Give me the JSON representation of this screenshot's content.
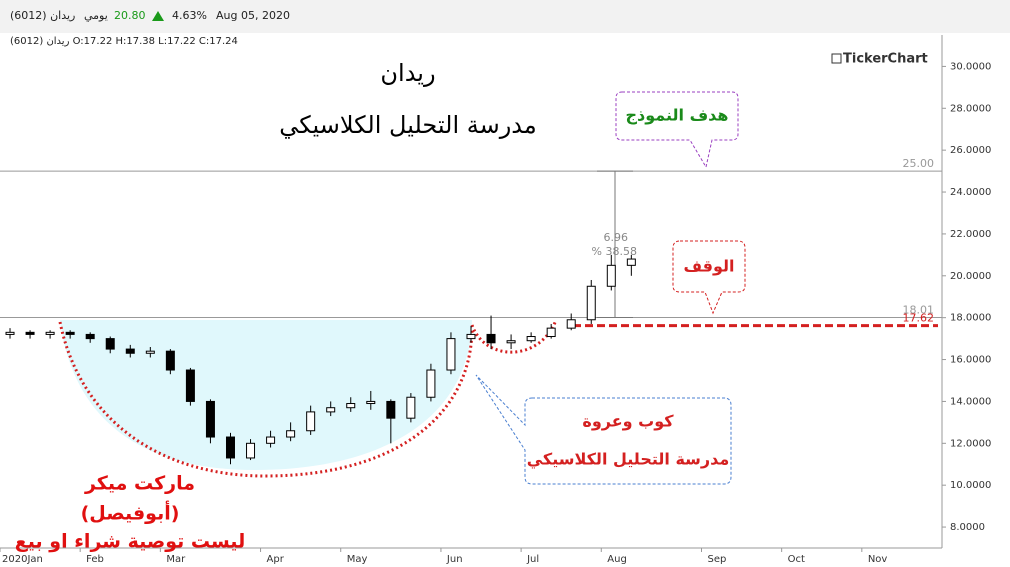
{
  "header": {
    "symbol": "ريدان (6012)",
    "period": "يومي",
    "price": "20.80",
    "change": "4.63%",
    "date": "Aug 05, 2020"
  },
  "chart_data": {
    "type": "candlestick",
    "ohlc_label": "ريدان (6012) O:17.22 H:17.38 L:17.22 C:17.24",
    "brand": "TickerChart",
    "title": "ريدان",
    "subtitle": "مدرسة التحليل الكلاسيكي",
    "categories": [
      "2020Jan",
      null,
      null,
      null,
      "Feb",
      null,
      null,
      null,
      "Mar",
      null,
      null,
      null,
      null,
      "Apr",
      null,
      null,
      null,
      "May",
      null,
      null,
      null,
      null,
      "Jun",
      null,
      null,
      null,
      "Jul",
      null,
      null,
      null,
      "Aug",
      null,
      null,
      null,
      null,
      "Sep",
      null,
      null,
      null,
      "Oct",
      null,
      null,
      null,
      "Nov",
      null,
      null,
      null
    ],
    "open": [
      17.2,
      17.3,
      17.2,
      17.3,
      17.2,
      17.0,
      16.5,
      16.3,
      16.4,
      15.5,
      14.0,
      12.3,
      11.3,
      12.0,
      12.3,
      12.6,
      13.5,
      13.7,
      13.9,
      14.0,
      13.2,
      14.2,
      15.5,
      17.0,
      17.2,
      16.8,
      16.9,
      17.1,
      17.5,
      17.9,
      19.5,
      20.5,
      null,
      null,
      null,
      null,
      null,
      null,
      null,
      null,
      null,
      null,
      null,
      null,
      null,
      null,
      null
    ],
    "high": [
      17.5,
      17.4,
      17.4,
      17.4,
      17.3,
      17.1,
      16.7,
      16.6,
      16.5,
      15.6,
      14.1,
      12.5,
      12.2,
      12.6,
      13.0,
      13.8,
      14.0,
      14.2,
      14.5,
      14.1,
      14.4,
      15.8,
      17.3,
      17.6,
      18.1,
      17.2,
      17.3,
      17.7,
      18.2,
      19.8,
      21.0,
      21.0,
      null,
      null,
      null,
      null,
      null,
      null,
      null,
      null,
      null,
      null,
      null,
      null,
      null,
      null,
      null
    ],
    "low": [
      17.0,
      17.0,
      17.0,
      17.0,
      16.8,
      16.3,
      16.1,
      16.1,
      15.3,
      13.8,
      12.0,
      11.0,
      11.2,
      11.8,
      12.1,
      12.4,
      13.3,
      13.5,
      13.6,
      12.0,
      13.0,
      14.0,
      15.3,
      16.8,
      16.5,
      16.5,
      16.8,
      17.0,
      17.4,
      17.7,
      19.3,
      20.0,
      null,
      null,
      null,
      null,
      null,
      null,
      null,
      null,
      null,
      null,
      null,
      null,
      null,
      null,
      null
    ],
    "close": [
      17.3,
      17.2,
      17.3,
      17.2,
      17.0,
      16.5,
      16.3,
      16.4,
      15.5,
      14.0,
      12.3,
      11.3,
      12.0,
      12.3,
      12.6,
      13.5,
      13.7,
      13.9,
      14.0,
      13.2,
      14.2,
      15.5,
      17.0,
      17.2,
      16.8,
      16.9,
      17.1,
      17.5,
      17.9,
      19.5,
      20.5,
      20.8,
      null,
      null,
      null,
      null,
      null,
      null,
      null,
      null,
      null,
      null,
      null,
      null,
      null,
      null,
      null
    ],
    "ylim": [
      7,
      31.5
    ],
    "yticks": [
      {
        "value": 8,
        "label": "8.0000"
      },
      {
        "value": 10,
        "label": "10.0000"
      },
      {
        "value": 12,
        "label": "12.0000"
      },
      {
        "value": 14,
        "label": "14.0000"
      },
      {
        "value": 16,
        "label": "16.0000"
      },
      {
        "value": 18,
        "label": "18.0000"
      },
      {
        "value": 20,
        "label": "20.0000"
      },
      {
        "value": 22,
        "label": "22.0000"
      },
      {
        "value": 24,
        "label": "24.0000"
      },
      {
        "value": 26,
        "label": "26.0000"
      },
      {
        "value": 28,
        "label": "28.0000"
      },
      {
        "value": 30,
        "label": "30.0000"
      }
    ],
    "levels": [
      {
        "value": 25,
        "label": "25.00",
        "color": "#999999",
        "style": "solid"
      },
      {
        "value": 18.01,
        "label": "18.01",
        "color": "#999999",
        "style": "solid"
      },
      {
        "value": 17.62,
        "label": "17.62",
        "color": "#d42020",
        "style": "dashed"
      }
    ],
    "measure": {
      "change": {
        "value": 6.96,
        "label": "6.96"
      },
      "percent": {
        "value": 38.58,
        "label": "% 38.58"
      }
    },
    "callouts": [
      {
        "lines": [
          "هدف النموذج"
        ],
        "color": "#1a8a1a"
      },
      {
        "lines": [
          "الوقف"
        ],
        "color": "#d42020"
      },
      {
        "lines": [
          "كوب وعروة",
          "مدرسة التحليل الكلاسيكي"
        ],
        "color": "#d42020"
      }
    ],
    "disclaimer": [
      "ماركت ميكر",
      "(أبوفيصل)",
      "ليست توصية شراء او بيع"
    ]
  }
}
